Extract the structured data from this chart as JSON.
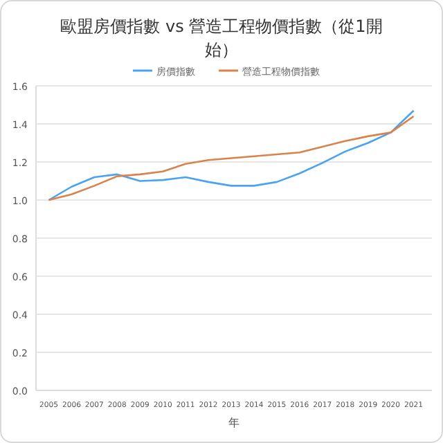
{
  "chart_data": {
    "type": "line",
    "title": "歐盟房價指數 vs 營造工程物價指數（從1開始）",
    "xlabel": "年",
    "categories": [
      "2005",
      "2006",
      "2007",
      "2008",
      "2009",
      "2010",
      "2011",
      "2012",
      "2013",
      "2014",
      "2015",
      "2016",
      "2017",
      "2018",
      "2019",
      "2020",
      "2021"
    ],
    "series": [
      {
        "name": "房價指數",
        "color": "#4aa3f0",
        "values": [
          1.0,
          1.07,
          1.12,
          1.135,
          1.1,
          1.105,
          1.12,
          1.095,
          1.075,
          1.075,
          1.095,
          1.14,
          1.195,
          1.255,
          1.3,
          1.355,
          1.47
        ]
      },
      {
        "name": "營造工程物價指數",
        "color": "#d9824b",
        "values": [
          1.0,
          1.03,
          1.075,
          1.125,
          1.135,
          1.15,
          1.19,
          1.21,
          1.22,
          1.23,
          1.24,
          1.25,
          1.28,
          1.31,
          1.335,
          1.355,
          1.44
        ]
      }
    ],
    "ylim": [
      0,
      1.6
    ],
    "yticks": [
      {
        "value": 0,
        "label": "0.0"
      },
      0.2,
      0.4,
      0.6,
      0.8,
      {
        "value": 1,
        "label": "1.0"
      },
      1.2,
      1.4,
      1.6
    ],
    "grid": "y",
    "legend": "top",
    "marker": "none",
    "line_style": "solid"
  }
}
